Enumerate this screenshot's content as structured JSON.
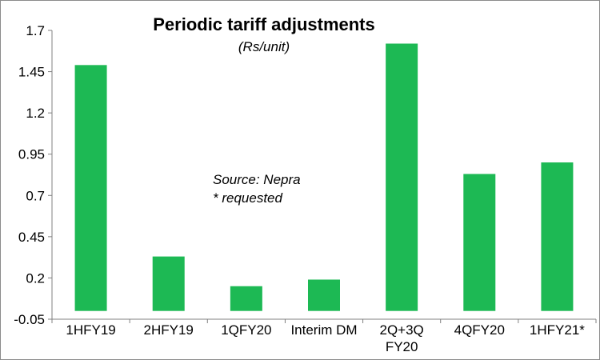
{
  "chart_data": {
    "type": "bar",
    "title": "Periodic tariff adjustments",
    "subtitle": "(Rs/unit)",
    "annotations": [
      "Source: Nepra",
      "* requested"
    ],
    "categories": [
      [
        "1HFY19"
      ],
      [
        "2HFY19"
      ],
      [
        "1QFY20"
      ],
      [
        "Interim DM"
      ],
      [
        "2Q+3Q",
        "FY20"
      ],
      [
        "4QFY20"
      ],
      [
        "1HFY21*"
      ]
    ],
    "values": [
      1.49,
      0.33,
      0.15,
      0.19,
      1.62,
      0.83,
      0.9
    ],
    "ylim": [
      -0.05,
      1.7
    ],
    "yticks": [
      "1.7",
      "1.45",
      "1.2",
      "0.95",
      "0.7",
      "0.45",
      "0.2",
      "-0.05"
    ],
    "ytick_values": [
      1.7,
      1.45,
      1.2,
      0.95,
      0.7,
      0.45,
      0.2,
      -0.05
    ],
    "bar_color": "#1db954",
    "grid": false,
    "legend": "none"
  }
}
